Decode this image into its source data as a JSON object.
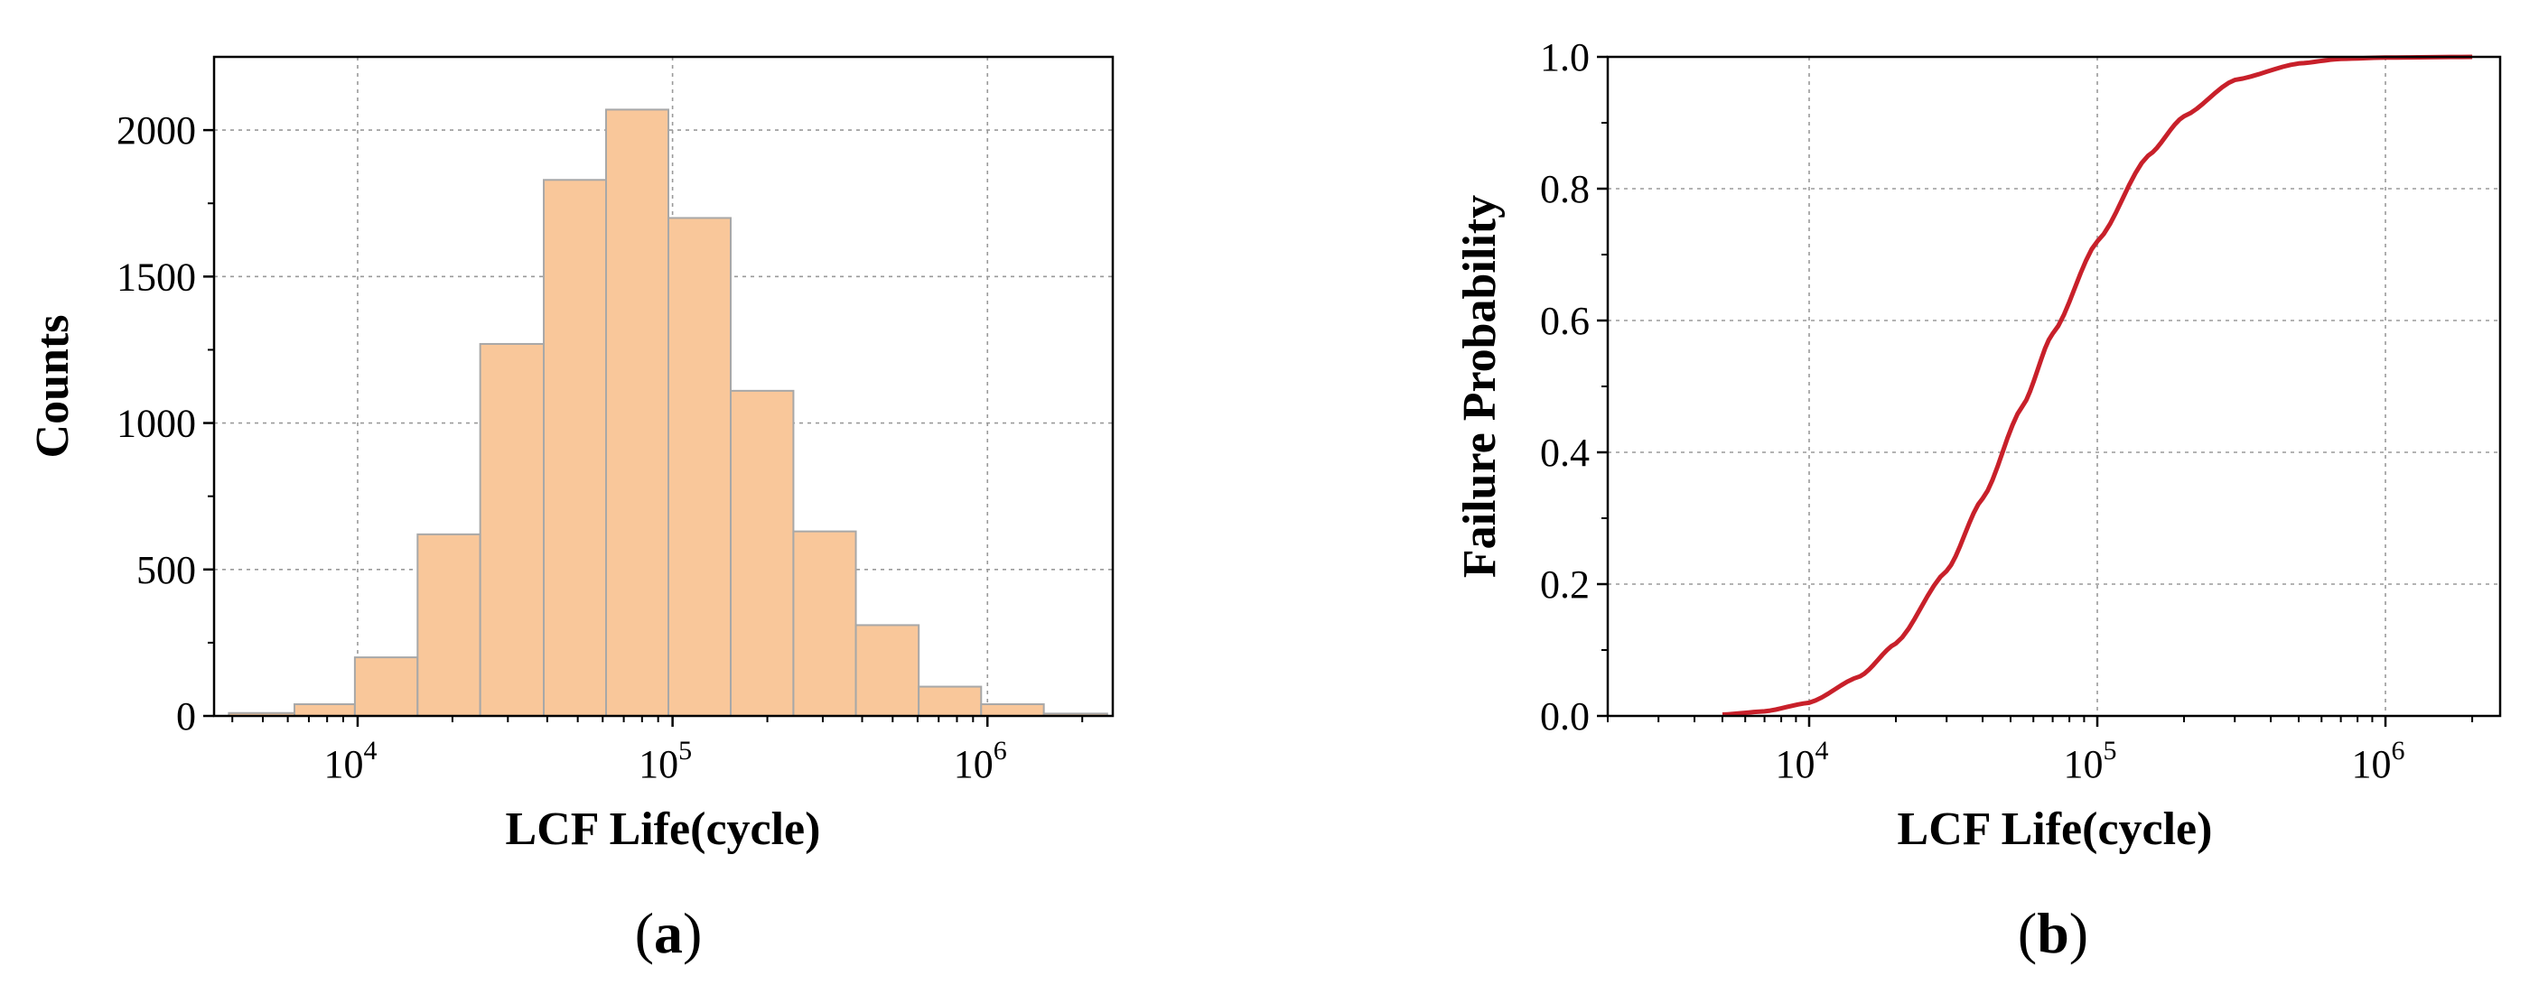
{
  "chart_data": [
    {
      "type": "bar",
      "panel_label": {
        "open": "(",
        "letter": "a",
        "close": ")"
      },
      "xlabel": "LCF Life(cycle)",
      "ylabel": "Counts",
      "xscale": "log",
      "xlim": [
        3500,
        2500000
      ],
      "ylim": [
        0,
        2250
      ],
      "grid": true,
      "x_ticks": [
        {
          "base": "10",
          "exp": "4",
          "value": 10000
        },
        {
          "base": "10",
          "exp": "5",
          "value": 100000
        },
        {
          "base": "10",
          "exp": "6",
          "value": 1000000
        }
      ],
      "y_ticks": [
        {
          "label": "0",
          "value": 0
        },
        {
          "label": "500",
          "value": 500
        },
        {
          "label": "1000",
          "value": 1000
        },
        {
          "label": "1500",
          "value": 1500
        },
        {
          "label": "2000",
          "value": 2000
        }
      ],
      "bins": [
        {
          "x0": 3900,
          "x1": 6300,
          "count": 10
        },
        {
          "x0": 6300,
          "x1": 9800,
          "count": 40
        },
        {
          "x0": 9800,
          "x1": 15500,
          "count": 200
        },
        {
          "x0": 15500,
          "x1": 24500,
          "count": 620
        },
        {
          "x0": 24500,
          "x1": 39000,
          "count": 1270
        },
        {
          "x0": 39000,
          "x1": 61500,
          "count": 1830
        },
        {
          "x0": 61500,
          "x1": 97000,
          "count": 2070
        },
        {
          "x0": 97000,
          "x1": 153000,
          "count": 1700
        },
        {
          "x0": 153000,
          "x1": 242000,
          "count": 1110
        },
        {
          "x0": 242000,
          "x1": 382000,
          "count": 630
        },
        {
          "x0": 382000,
          "x1": 605000,
          "count": 310
        },
        {
          "x0": 605000,
          "x1": 955000,
          "count": 100
        },
        {
          "x0": 955000,
          "x1": 1510000,
          "count": 40
        },
        {
          "x0": 1510000,
          "x1": 2400000,
          "count": 8
        }
      ],
      "colors": {
        "bar": "#f9c79a",
        "bar_edge": "#a8a8a8"
      }
    },
    {
      "type": "line",
      "panel_label": {
        "open": "(",
        "letter": "b",
        "close": ")"
      },
      "xlabel": "LCF Life(cycle)",
      "ylabel": "Failure Probability",
      "xscale": "log",
      "xlim": [
        2000,
        2500000
      ],
      "ylim": [
        0,
        1.0
      ],
      "grid": true,
      "x_ticks": [
        {
          "base": "10",
          "exp": "4",
          "value": 10000
        },
        {
          "base": "10",
          "exp": "5",
          "value": 100000
        },
        {
          "base": "10",
          "exp": "6",
          "value": 1000000
        }
      ],
      "y_ticks": [
        {
          "label": "0.0",
          "value": 0
        },
        {
          "label": "0.2",
          "value": 0.2
        },
        {
          "label": "0.4",
          "value": 0.4
        },
        {
          "label": "0.6",
          "value": 0.6
        },
        {
          "label": "0.8",
          "value": 0.8
        },
        {
          "label": "1.0",
          "value": 1.0
        }
      ],
      "series": [
        {
          "x": [
            5000,
            7000,
            10000,
            15000,
            20000,
            30000,
            40000,
            55000,
            70000,
            100000,
            150000,
            200000,
            300000,
            500000,
            700000,
            1000000,
            2000000
          ],
          "y": [
            0.002,
            0.007,
            0.02,
            0.06,
            0.11,
            0.22,
            0.33,
            0.47,
            0.58,
            0.72,
            0.85,
            0.91,
            0.965,
            0.99,
            0.997,
            0.999,
            1.0
          ],
          "color": "#c8202a"
        }
      ]
    }
  ]
}
